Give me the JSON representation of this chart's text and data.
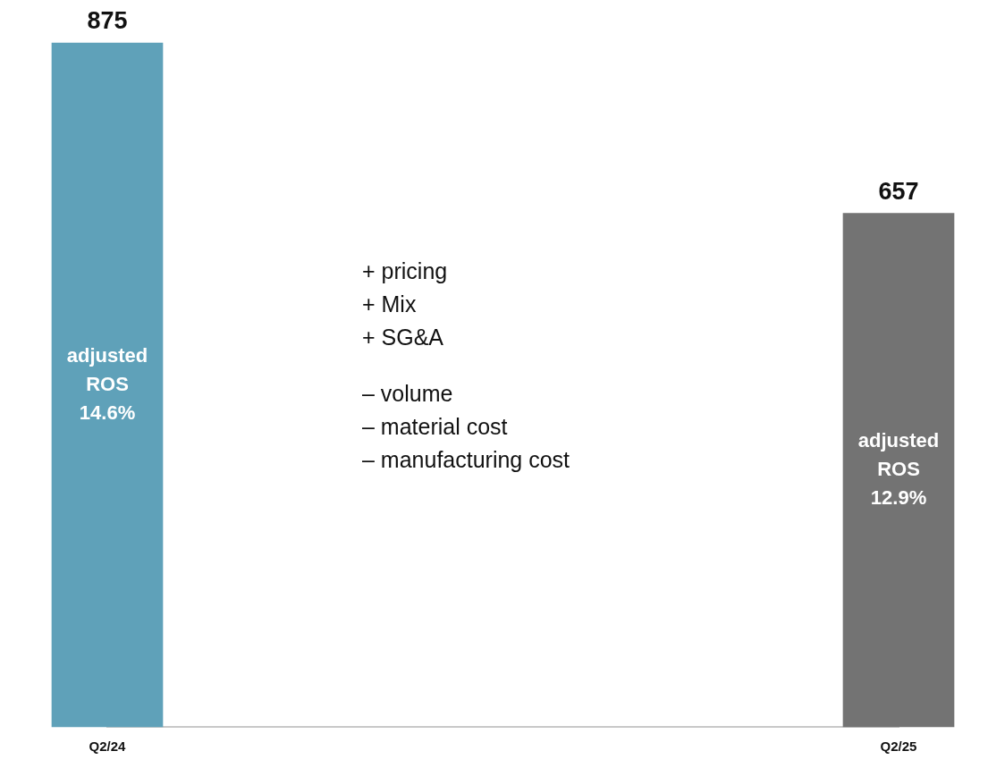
{
  "chart_data": {
    "type": "bar",
    "categories": [
      "Q2/24",
      "Q2/25"
    ],
    "values": [
      875,
      657
    ],
    "colors": [
      "#5fa1b9",
      "#737373"
    ],
    "data_labels": true,
    "annotations": [
      "adjusted\nROS\n14.6%",
      "adjusted\nROS\n12.9%",
      "+   pricing\n+   Mix\n+   SG&A",
      "–   volume\n–   material cost\n–   manufacturing cost"
    ]
  }
}
